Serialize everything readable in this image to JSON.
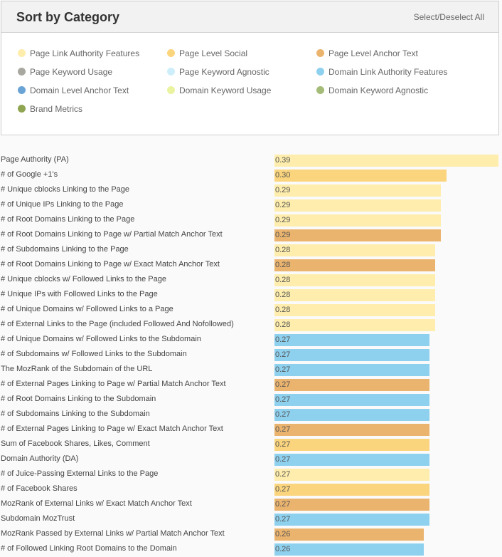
{
  "panel": {
    "title": "Sort by Category",
    "select_all": "Select/Deselect All"
  },
  "colors": {
    "plaf": "#feedac",
    "pls": "#fbd57d",
    "plat": "#ebb46e",
    "pku": "#a8a8a0",
    "pka": "#cdeefa",
    "dlaf": "#8ed1ef",
    "dlat": "#6aa3d5",
    "dku": "#eaf3a0",
    "dka": "#a4bc78",
    "bm": "#8fa552"
  },
  "legend": [
    {
      "label": "Page Link Authority Features",
      "key": "plaf"
    },
    {
      "label": "Page Level Social",
      "key": "pls"
    },
    {
      "label": "Page Level Anchor Text",
      "key": "plat"
    },
    {
      "label": "Page Keyword Usage",
      "key": "pku"
    },
    {
      "label": "Page Keyword Agnostic",
      "key": "pka"
    },
    {
      "label": "Domain Link Authority Features",
      "key": "dlaf"
    },
    {
      "label": "Domain Level Anchor Text",
      "key": "dlat"
    },
    {
      "label": "Domain Keyword Usage",
      "key": "dku"
    },
    {
      "label": "Domain Keyword Agnostic",
      "key": "dka"
    },
    {
      "label": "Brand Metrics",
      "key": "bm"
    }
  ],
  "chart_data": {
    "type": "bar",
    "orientation": "horizontal",
    "rows": [
      {
        "label": "Page Authority (PA)",
        "value": "0.39",
        "cat": "plaf"
      },
      {
        "label": "# of Google +1's",
        "value": "0.30",
        "cat": "pls"
      },
      {
        "label": "# Unique cblocks Linking to the Page",
        "value": "0.29",
        "cat": "plaf"
      },
      {
        "label": "# of Unique IPs Linking to the Page",
        "value": "0.29",
        "cat": "plaf"
      },
      {
        "label": "# of Root Domains Linking to the Page",
        "value": "0.29",
        "cat": "plaf"
      },
      {
        "label": "# of Root Domains Linking to Page w/ Partial Match Anchor Text",
        "value": "0.29",
        "cat": "plat"
      },
      {
        "label": "# of Subdomains Linking to the Page",
        "value": "0.28",
        "cat": "plaf"
      },
      {
        "label": "# of Root Domains Linking to Page w/ Exact Match Anchor Text",
        "value": "0.28",
        "cat": "plat"
      },
      {
        "label": "# Unique cblocks w/ Followed Links to the Page",
        "value": "0.28",
        "cat": "plaf"
      },
      {
        "label": "# Unique IPs with Followed Links to the Page",
        "value": "0.28",
        "cat": "plaf"
      },
      {
        "label": "# of Unique Domains w/ Followed Links to a Page",
        "value": "0.28",
        "cat": "plaf"
      },
      {
        "label": "# of External Links to the Page (included Followed And Nofollowed)",
        "value": "0.28",
        "cat": "plaf"
      },
      {
        "label": "# of Unique Domains w/ Followed Links to the Subdomain",
        "value": "0.27",
        "cat": "dlaf"
      },
      {
        "label": "# of Subdomains w/ Followed Links to the Subdomain",
        "value": "0.27",
        "cat": "dlaf"
      },
      {
        "label": "The MozRank of the Subdomain of the URL",
        "value": "0.27",
        "cat": "dlaf"
      },
      {
        "label": "# of External Pages Linking to Page w/ Partial Match Anchor Text",
        "value": "0.27",
        "cat": "plat"
      },
      {
        "label": "# of Root Domains Linking to the Subdomain",
        "value": "0.27",
        "cat": "dlaf"
      },
      {
        "label": "# of Subdomains Linking to the Subdomain",
        "value": "0.27",
        "cat": "dlaf"
      },
      {
        "label": "# of External Pages Linking to Page w/ Exact Match Anchor Text",
        "value": "0.27",
        "cat": "plat"
      },
      {
        "label": "Sum of Facebook Shares, Likes, Comment",
        "value": "0.27",
        "cat": "pls"
      },
      {
        "label": "Domain Authority (DA)",
        "value": "0.27",
        "cat": "dlaf"
      },
      {
        "label": "# of Juice-Passing External Links to the Page",
        "value": "0.27",
        "cat": "plaf"
      },
      {
        "label": "# of Facebook Shares",
        "value": "0.27",
        "cat": "pls"
      },
      {
        "label": "MozRank of External Links w/ Exact Match Anchor Text",
        "value": "0.27",
        "cat": "plat"
      },
      {
        "label": "Subdomain MozTrust",
        "value": "0.27",
        "cat": "dlaf"
      },
      {
        "label": "MozRank Passed by External Links w/ Partial Match Anchor Text",
        "value": "0.26",
        "cat": "plat"
      },
      {
        "label": "# of Followed Linking Root Domains to the Domain",
        "value": "0.26",
        "cat": "dlaf"
      }
    ]
  }
}
